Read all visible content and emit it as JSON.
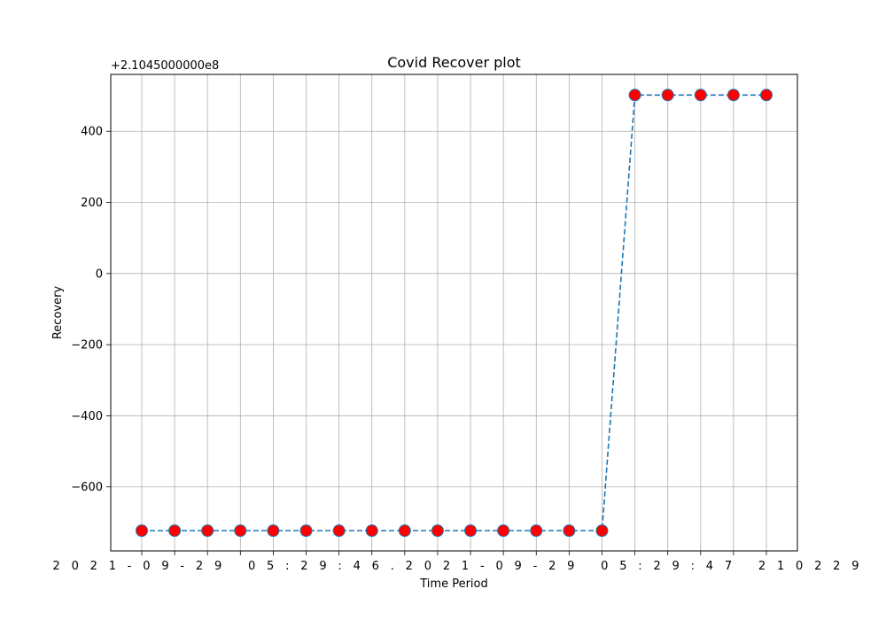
{
  "chart_data": {
    "type": "line",
    "title": "Covid Recover plot",
    "xlabel": "Time Period",
    "ylabel": "Recovery",
    "y_offset_label": "+2.1045000000e8",
    "y_offset": 210450000,
    "ylim": [
      -780,
      560
    ],
    "yticks": [
      -600,
      -400,
      -200,
      0,
      200,
      400
    ],
    "ytick_labels": [
      "−600",
      "−400",
      "−200",
      "0",
      "200",
      "400"
    ],
    "x_tick_label_overlap": "2021-09-29 05:29:46.2021-09-29 05:29:47 210229",
    "grid": true,
    "series": [
      {
        "line_color": "#1f77b4",
        "line_style": "dashed",
        "marker_face": "#ff0000",
        "marker_edge": "#1f77b4",
        "values": [
          -723,
          -723,
          -723,
          -723,
          -723,
          -723,
          -723,
          -723,
          -723,
          -723,
          -723,
          -723,
          -723,
          -723,
          -723,
          502,
          502,
          502,
          502,
          502
        ]
      }
    ]
  }
}
